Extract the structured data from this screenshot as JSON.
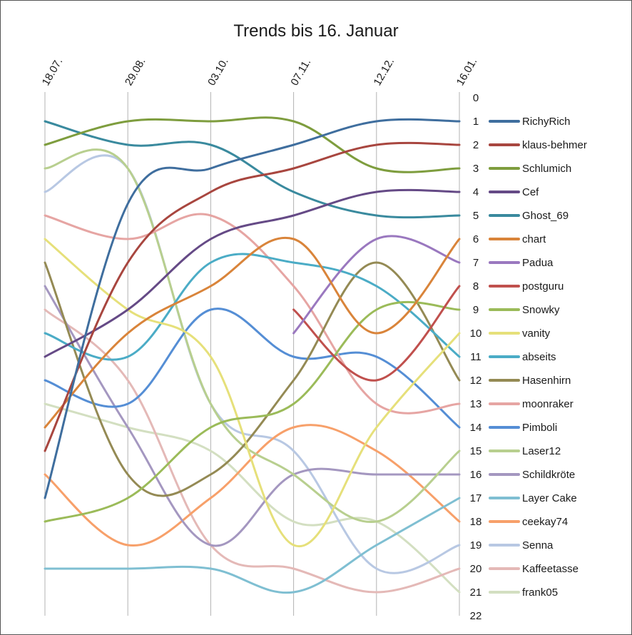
{
  "chart_data": {
    "type": "line",
    "title": "Trends bis 16. Januar",
    "xlabel": "",
    "ylabel": "",
    "categories": [
      "18.07.",
      "29.08.",
      "03.10.",
      "07.11.",
      "12.12.",
      "16.01."
    ],
    "y_axis": {
      "min": 0,
      "max": 22,
      "reversed": true,
      "ticks": [
        "0",
        "1",
        "2",
        "3",
        "4",
        "5",
        "6",
        "7",
        "8",
        "9",
        "10",
        "11",
        "12",
        "13",
        "14",
        "15",
        "16",
        "17",
        "18",
        "19",
        "20",
        "21",
        "22"
      ]
    },
    "grid": {
      "vertical": true,
      "horizontal": false
    },
    "smooth": true,
    "legend_position": "right",
    "series": [
      {
        "name": "RichyRich",
        "color": "#3f6e9e",
        "values": [
          17,
          4.5,
          3,
          2,
          1,
          1
        ]
      },
      {
        "name": "klaus-behmer",
        "color": "#a8463f",
        "values": [
          15,
          7,
          4,
          3,
          2,
          2
        ]
      },
      {
        "name": "Schlumich",
        "color": "#7e9d3e",
        "values": [
          2,
          1,
          1,
          1,
          3,
          3
        ]
      },
      {
        "name": "Cef",
        "color": "#654a86",
        "values": [
          11,
          9,
          6,
          5,
          4,
          4
        ]
      },
      {
        "name": "Ghost_69",
        "color": "#3a8a9e",
        "values": [
          1,
          2,
          2,
          4,
          5,
          5
        ]
      },
      {
        "name": "chart",
        "color": "#d9843a",
        "values": [
          14,
          10,
          8,
          6,
          10,
          6
        ]
      },
      {
        "name": "Padua",
        "color": "#9a78bf",
        "values": [
          null,
          null,
          null,
          10,
          6,
          7
        ]
      },
      {
        "name": "postguru",
        "color": "#c0504d",
        "values": [
          null,
          null,
          null,
          9,
          12,
          8
        ]
      },
      {
        "name": "Snowky",
        "color": "#9bbb59",
        "values": [
          18,
          17,
          14,
          13,
          9,
          9
        ]
      },
      {
        "name": "vanity",
        "color": "#e6e07a",
        "values": [
          6,
          9,
          11,
          19,
          14,
          10
        ]
      },
      {
        "name": "abseits",
        "color": "#4bacc6",
        "values": [
          10,
          11,
          7,
          7,
          8,
          11
        ]
      },
      {
        "name": "Hasenhirn",
        "color": "#948a54",
        "values": [
          7,
          16,
          16,
          12,
          7,
          12
        ]
      },
      {
        "name": "moonraker",
        "color": "#e6a5a3",
        "values": [
          5,
          6,
          5,
          8,
          13,
          13
        ]
      },
      {
        "name": "Pimboli",
        "color": "#558ed5",
        "values": [
          12,
          13,
          9,
          11,
          11,
          14
        ]
      },
      {
        "name": "Laser12",
        "color": "#b8cf8f",
        "values": [
          3,
          3,
          13,
          16,
          18,
          15
        ]
      },
      {
        "name": "Schildkröte",
        "color": "#a497c0",
        "values": [
          8,
          14,
          19,
          16,
          16,
          16
        ]
      },
      {
        "name": "Layer Cake",
        "color": "#7fbfd2",
        "values": [
          20,
          20,
          20,
          21,
          19,
          17
        ]
      },
      {
        "name": "ceekay74",
        "color": "#f7a06a",
        "values": [
          16,
          19,
          17,
          14,
          15,
          18
        ]
      },
      {
        "name": "Senna",
        "color": "#b8c8e3",
        "values": [
          4,
          3,
          13,
          15,
          20,
          19
        ]
      },
      {
        "name": "Kaffeetasse",
        "color": "#e4b9b7",
        "values": [
          9,
          12,
          19,
          20,
          21,
          20
        ]
      },
      {
        "name": "frank05",
        "color": "#d3dfc1",
        "values": [
          13,
          14,
          15,
          18,
          18,
          21
        ]
      }
    ]
  }
}
